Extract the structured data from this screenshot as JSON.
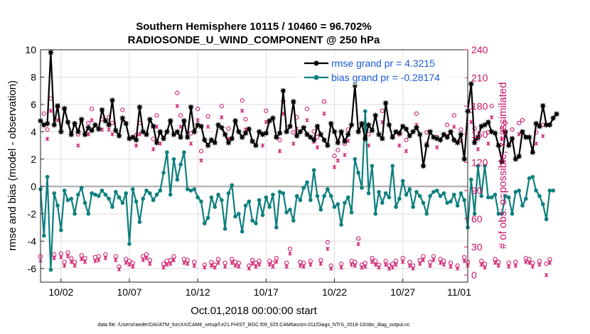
{
  "chart_data": {
    "type": "line",
    "title": "Southern Hemisphere 10115 / 10460 = 96.702%",
    "subtitle": "RADIOSONDE_U_WIND_COMPONENT @ 250 hPa",
    "xlabel": "Oct.01,2018 00:00:00 start",
    "ylabel": "rmse and bias (model - observation)",
    "ylabel_right": "# of obs: o=possible; ×=assimilated",
    "footnote": "data file: /Users/raeder/DAI/ATM_forcXX/CAM6_setup/f.e21.FHIST_BGC.f09_025.CAM6assim.011/Diags_NTrS_2018-10/obs_diag_output.nc",
    "xlim": [
      0.5,
      31.75
    ],
    "ylim": [
      -7,
      10
    ],
    "ylim_right": [
      -7.5,
      240
    ],
    "grid": true,
    "legend_position": "top-right",
    "x_ticks": [
      {
        "value": 2,
        "label": "10/02"
      },
      {
        "value": 7,
        "label": "10/07"
      },
      {
        "value": 12,
        "label": "10/12"
      },
      {
        "value": 17,
        "label": "10/17"
      },
      {
        "value": 22,
        "label": "10/22"
      },
      {
        "value": 27,
        "label": "10/27"
      },
      {
        "value": 32,
        "label": "11/01"
      }
    ],
    "y_ticks": [
      {
        "value": 10,
        "label": "10"
      },
      {
        "value": 8,
        "label": "8"
      },
      {
        "value": 6,
        "label": "6"
      },
      {
        "value": 4,
        "label": "4"
      },
      {
        "value": 2,
        "label": "2"
      },
      {
        "value": 0,
        "label": "0"
      },
      {
        "value": -2,
        "label": "-2"
      },
      {
        "value": -4,
        "label": "-4"
      },
      {
        "value": -6,
        "label": "-6"
      }
    ],
    "y_ticks_right": [
      {
        "value": 240,
        "label": "240"
      },
      {
        "value": 210,
        "label": "210"
      },
      {
        "value": 180,
        "label": "180"
      },
      {
        "value": 150,
        "label": "150"
      },
      {
        "value": 120,
        "label": "120"
      },
      {
        "value": 90,
        "label": "90"
      },
      {
        "value": 60,
        "label": "60"
      },
      {
        "value": 30,
        "label": "30"
      },
      {
        "value": 0,
        "label": "0"
      }
    ],
    "start_day": 0.5,
    "step_days": 0.25,
    "series": [
      {
        "name": "rmse grand pr = 4.3215",
        "color": "#000000",
        "marker": "star",
        "axis": "left",
        "values": [
          4.8,
          4.5,
          4.6,
          9.8,
          4.5,
          5.9,
          4.0,
          5.7,
          4.7,
          3.8,
          4.6,
          4.0,
          4.9,
          3.8,
          4.3,
          4.1,
          4.5,
          4.2,
          5.6,
          4.8,
          4.5,
          6.3,
          4.1,
          3.7,
          5.0,
          4.6,
          3.5,
          3.6,
          3.4,
          5.8,
          4.0,
          3.8,
          4.9,
          4.4,
          3.2,
          4.0,
          3.5,
          4.0,
          4.8,
          3.8,
          4.0,
          3.6,
          4.8,
          3.6,
          5.8,
          4.0,
          4.5,
          4.4,
          3.4,
          3.0,
          3.4,
          3.2,
          4.5,
          4.3,
          3.8,
          3.2,
          3.5,
          4.8,
          4.0,
          3.6,
          3.9,
          4.2,
          3.3,
          3.0,
          4.0,
          3.8,
          3.9,
          4.8,
          5.0,
          3.6,
          3.9,
          7.0,
          4.0,
          4.4,
          6.2,
          3.7,
          4.0,
          4.3,
          3.8,
          3.6,
          3.4,
          4.4,
          3.8,
          3.4,
          3.0,
          4.6,
          4.0,
          3.2,
          4.0,
          3.3,
          3.8,
          4.5,
          7.4,
          4.0,
          4.6,
          3.5,
          4.5,
          4.1,
          5.2,
          3.8,
          3.5,
          6.1,
          4.5,
          3.6,
          4.0,
          3.9,
          4.4,
          4.2,
          3.7,
          4.0,
          4.3,
          3.8,
          1.5,
          3.0,
          4.0,
          3.6,
          3.5,
          3.4,
          3.8,
          3.6,
          4.0,
          3.4,
          3.2,
          3.8,
          2.0,
          5.5,
          7.5,
          3.2,
          3.6,
          4.4,
          4.5,
          4.7,
          4.0,
          3.9,
          3.0,
          1.8,
          4.0,
          3.0,
          3.5,
          2.0,
          2.2,
          4.0,
          3.6,
          3.6,
          2.5,
          4.6,
          4.4,
          5.9,
          4.5,
          4.5,
          5.0,
          5.3
        ]
      },
      {
        "name": "bias grand pr = -0.28174",
        "color": "#0e7f7f",
        "marker": "dot",
        "axis": "left",
        "values": [
          -0.2,
          -3.6,
          0.7,
          -6.1,
          -0.5,
          -1.4,
          -3.2,
          -0.3,
          -1.0,
          -0.9,
          -2.0,
          -0.6,
          -0.1,
          -1.2,
          -2.0,
          -0.5,
          -0.6,
          -0.7,
          -0.3,
          -0.6,
          -0.9,
          -1.5,
          -0.4,
          -0.8,
          -1.2,
          -0.5,
          -4.2,
          -0.2,
          -1.1,
          -2.6,
          -0.9,
          -0.3,
          -0.5,
          -1.0,
          -0.6,
          -0.3,
          1.0,
          2.5,
          -0.6,
          2.0,
          0.5,
          1.6,
          2.5,
          -0.2,
          -0.3,
          -0.2,
          -0.8,
          -1.1,
          -2.7,
          -2.3,
          -0.8,
          -1.5,
          -0.6,
          -1.0,
          -3.1,
          -0.5,
          0.1,
          -2.2,
          -2.0,
          -3.3,
          -1.4,
          -1.1,
          -2.5,
          -2.7,
          -1.0,
          -2.1,
          -0.8,
          -1.5,
          -0.6,
          -3.0,
          -0.4,
          -0.5,
          -1.9,
          -1.7,
          -2.5,
          -0.7,
          -1.0,
          -0.1,
          0.3,
          -1.0,
          1.2,
          -0.7,
          -1.7,
          -0.7,
          -0.2,
          -0.7,
          -1.5,
          -1.3,
          -2.8,
          -1.2,
          -0.8,
          -1.9,
          2.0,
          1.0,
          -0.1,
          5.5,
          -0.5,
          1.5,
          -2.0,
          -0.4,
          -1.2,
          -0.5,
          -0.8,
          1.5,
          -1.5,
          -0.9,
          0.4,
          -0.6,
          -0.2,
          -1.5,
          -0.4,
          -0.7,
          -1.2,
          -2.0,
          -0.7,
          -0.4,
          -0.3,
          -0.7,
          -0.5,
          -1.2,
          -1.1,
          -0.6,
          -1.4,
          -0.5,
          -1.0,
          -3.0,
          0.5,
          -2.0,
          1.5,
          -0.7,
          1.5,
          -0.8,
          -0.8,
          -0.6,
          -2.0,
          -2.0,
          -0.7,
          -0.8,
          -2.0,
          -0.4,
          -0.3,
          -1.4,
          -0.9,
          0.6,
          0.7,
          -0.3,
          -0.7,
          -1.3,
          -2.4,
          -0.3,
          -0.3
        ]
      },
      {
        "name": "obs possible",
        "color": "#cc1166",
        "marker": "circle",
        "axis": "right",
        "values": [
          20,
          172,
          155,
          188,
          22,
          179,
          23,
          14,
          24,
          18,
          14,
          150,
          21,
          18,
          162,
          177,
          19,
          20,
          166,
          22,
          168,
          162,
          20,
          9,
          176,
          17,
          15,
          13,
          149,
          162,
          20,
          22,
          16,
          145,
          170,
          152,
          12,
          15,
          16,
          20,
          194,
          170,
          17,
          16,
          151,
          14,
          177,
          132,
          11,
          169,
          14,
          11,
          17,
          180,
          13,
          156,
          17,
          14,
          13,
          186,
          166,
          10,
          16,
          13,
          15,
          150,
          175,
          15,
          13,
          18,
          144,
          185,
          13,
          28,
          152,
          168,
          14,
          13,
          177,
          15,
          153,
          147,
          16,
          185,
          35,
          10,
          127,
          133,
          12,
          140,
          155,
          15,
          14,
          39,
          11,
          13,
          150,
          18,
          15,
          11,
          175,
          15,
          10,
          12,
          15,
          150,
          18,
          144,
          14,
          10,
          172,
          16,
          20,
          152,
          14,
          20,
          147,
          17,
          15,
          160,
          13,
          170,
          10,
          155,
          19,
          14,
          175,
          156,
          145,
          15,
          12,
          152,
          180,
          17,
          14,
          156,
          162,
          13,
          155,
          14,
          162,
          165,
          18,
          17,
          13,
          152,
          15,
          160,
          12,
          17
        ]
      },
      {
        "name": "obs assimilated",
        "color": "#cc1166",
        "marker": "x",
        "axis": "right",
        "values": [
          15,
          160,
          145,
          175,
          18,
          165,
          19,
          10,
          20,
          14,
          10,
          138,
          17,
          14,
          150,
          165,
          15,
          16,
          155,
          18,
          155,
          150,
          16,
          6,
          165,
          13,
          11,
          9,
          138,
          150,
          16,
          18,
          12,
          134,
          158,
          140,
          8,
          11,
          12,
          16,
          180,
          158,
          13,
          12,
          140,
          10,
          165,
          122,
          8,
          158,
          10,
          8,
          13,
          168,
          9,
          145,
          13,
          10,
          9,
          175,
          155,
          7,
          12,
          9,
          11,
          138,
          163,
          11,
          9,
          14,
          132,
          172,
          9,
          23,
          140,
          156,
          10,
          9,
          165,
          11,
          142,
          136,
          12,
          172,
          28,
          7,
          115,
          122,
          8,
          128,
          143,
          11,
          10,
          33,
          8,
          9,
          138,
          14,
          11,
          8,
          163,
          11,
          7,
          8,
          11,
          138,
          14,
          132,
          10,
          7,
          160,
          12,
          16,
          140,
          10,
          16,
          136,
          13,
          11,
          148,
          9,
          158,
          7,
          143,
          15,
          10,
          163,
          145,
          134,
          11,
          8,
          140,
          168,
          13,
          10,
          145,
          150,
          9,
          143,
          10,
          150,
          152,
          14,
          13,
          9,
          140,
          11,
          148,
          0,
          13
        ]
      }
    ]
  }
}
